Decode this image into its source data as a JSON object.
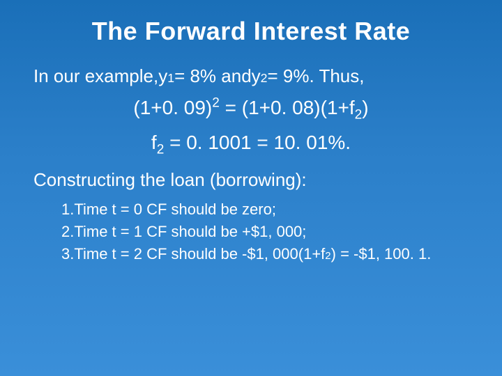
{
  "slide": {
    "background_gradient": [
      "#1a6fb8",
      "#2b7fc9",
      "#3a8fd9"
    ],
    "text_color": "#ffffff",
    "font_family": "Arial",
    "title": {
      "text": "The Forward Interest Rate",
      "fontsize": 36,
      "weight": "bold"
    },
    "intro": {
      "fontsize": 26,
      "prefix": "In our example, ",
      "y1_base": "y",
      "y1_sub": "1",
      "mid1": " = 8% and ",
      "y2_base": "y",
      "y2_sub": "2",
      "suffix": " = 9%. Thus,"
    },
    "eq1": {
      "fontsize": 28,
      "lhs_open": "(1+0. 09)",
      "lhs_sup": "2",
      "equals": " = (1+0. 08)(1+f",
      "f_sub": "2",
      "close": ")"
    },
    "eq2": {
      "fontsize": 28,
      "f_base": "f",
      "f_sub": "2",
      "rest": " = 0. 1001 = 10. 01%."
    },
    "construct": {
      "fontsize": 26,
      "text": "Constructing the loan (borrowing):"
    },
    "list": {
      "fontsize": 22,
      "items": [
        {
          "n": "1. ",
          "text": "Time t = 0 CF should be zero;"
        },
        {
          "n": "2. ",
          "text": "Time t = 1 CF should be +$1, 000;"
        },
        {
          "n": "3. ",
          "pre": "Time t = 2 CF should be -$1, 000(1+f",
          "f_sub": "2",
          "post": ") = -$1, 100. 1."
        }
      ]
    }
  }
}
